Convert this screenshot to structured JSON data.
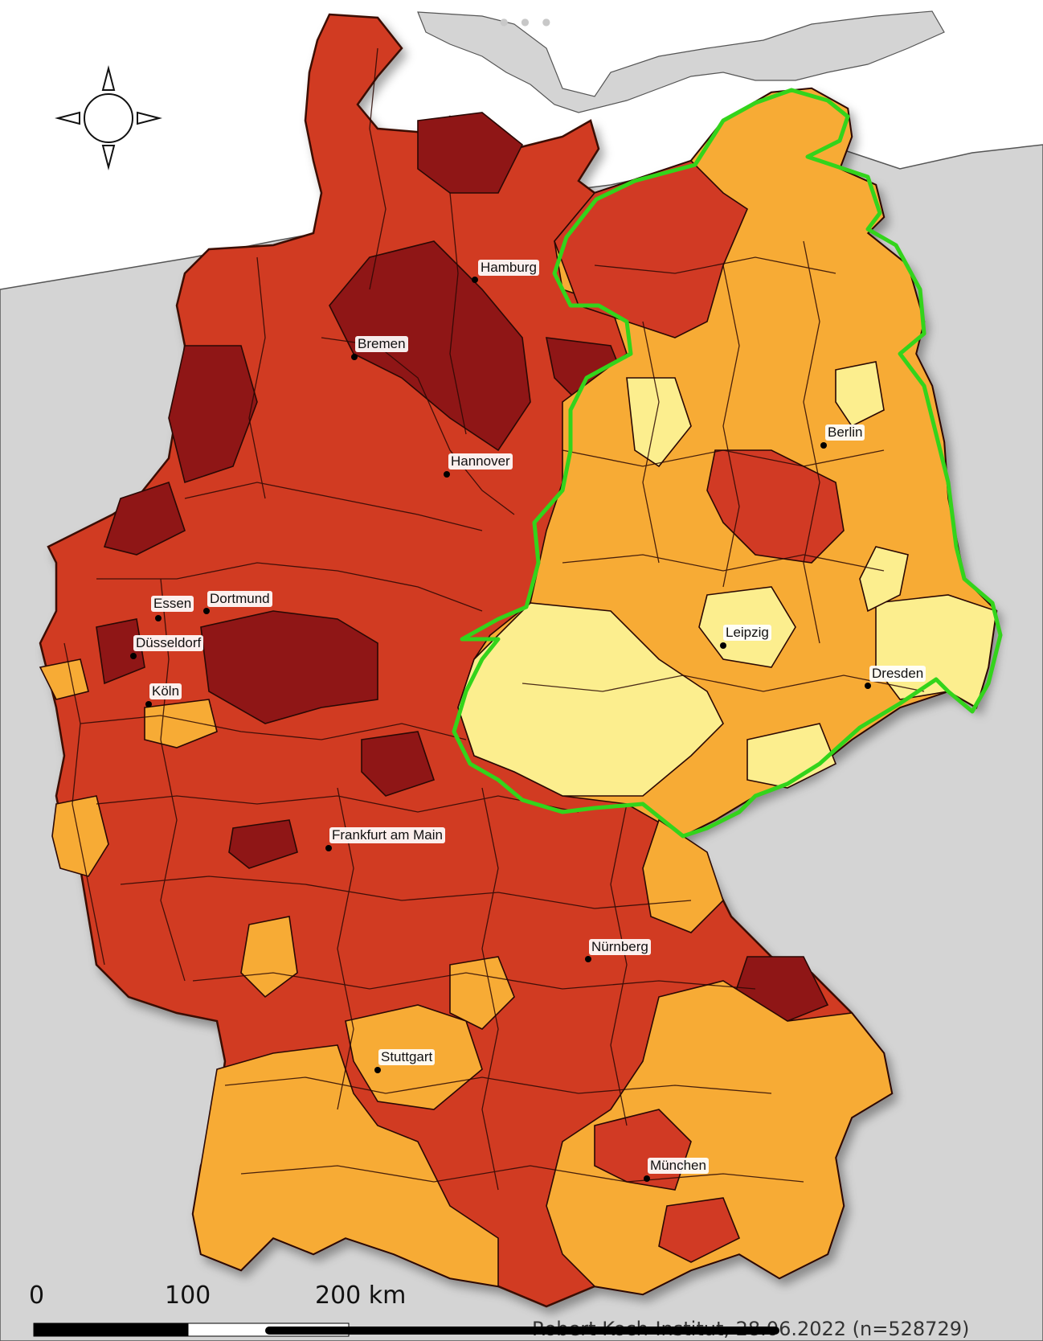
{
  "map": {
    "cities": [
      {
        "id": "hamburg",
        "name": "Hamburg"
      },
      {
        "id": "bremen",
        "name": "Bremen"
      },
      {
        "id": "hannover",
        "name": "Hannover"
      },
      {
        "id": "berlin",
        "name": "Berlin"
      },
      {
        "id": "essen",
        "name": "Essen"
      },
      {
        "id": "dortmund",
        "name": "Dortmund"
      },
      {
        "id": "duesseldorf",
        "name": "Düsseldorf"
      },
      {
        "id": "koeln",
        "name": "Köln"
      },
      {
        "id": "leipzig",
        "name": "Leipzig"
      },
      {
        "id": "dresden",
        "name": "Dresden"
      },
      {
        "id": "frankfurt",
        "name": "Frankfurt am Main"
      },
      {
        "id": "nuernberg",
        "name": "Nürnberg"
      },
      {
        "id": "stuttgart",
        "name": "Stuttgart"
      },
      {
        "id": "muenchen",
        "name": "München"
      }
    ],
    "scale_bar": {
      "labels": [
        "0",
        "100",
        "200 km"
      ]
    },
    "credit": "Robert Koch-Institut, 28.06.2022 (n=528729)",
    "colors": {
      "highest": "#8f1616",
      "high": "#d13a24",
      "medium": "#f7ab35",
      "low": "#fcee8e",
      "outside": "#d4d4d4",
      "water": "#ffffff",
      "highlight_outline": "#33d41b"
    },
    "compass": "compass-rose-icon"
  }
}
